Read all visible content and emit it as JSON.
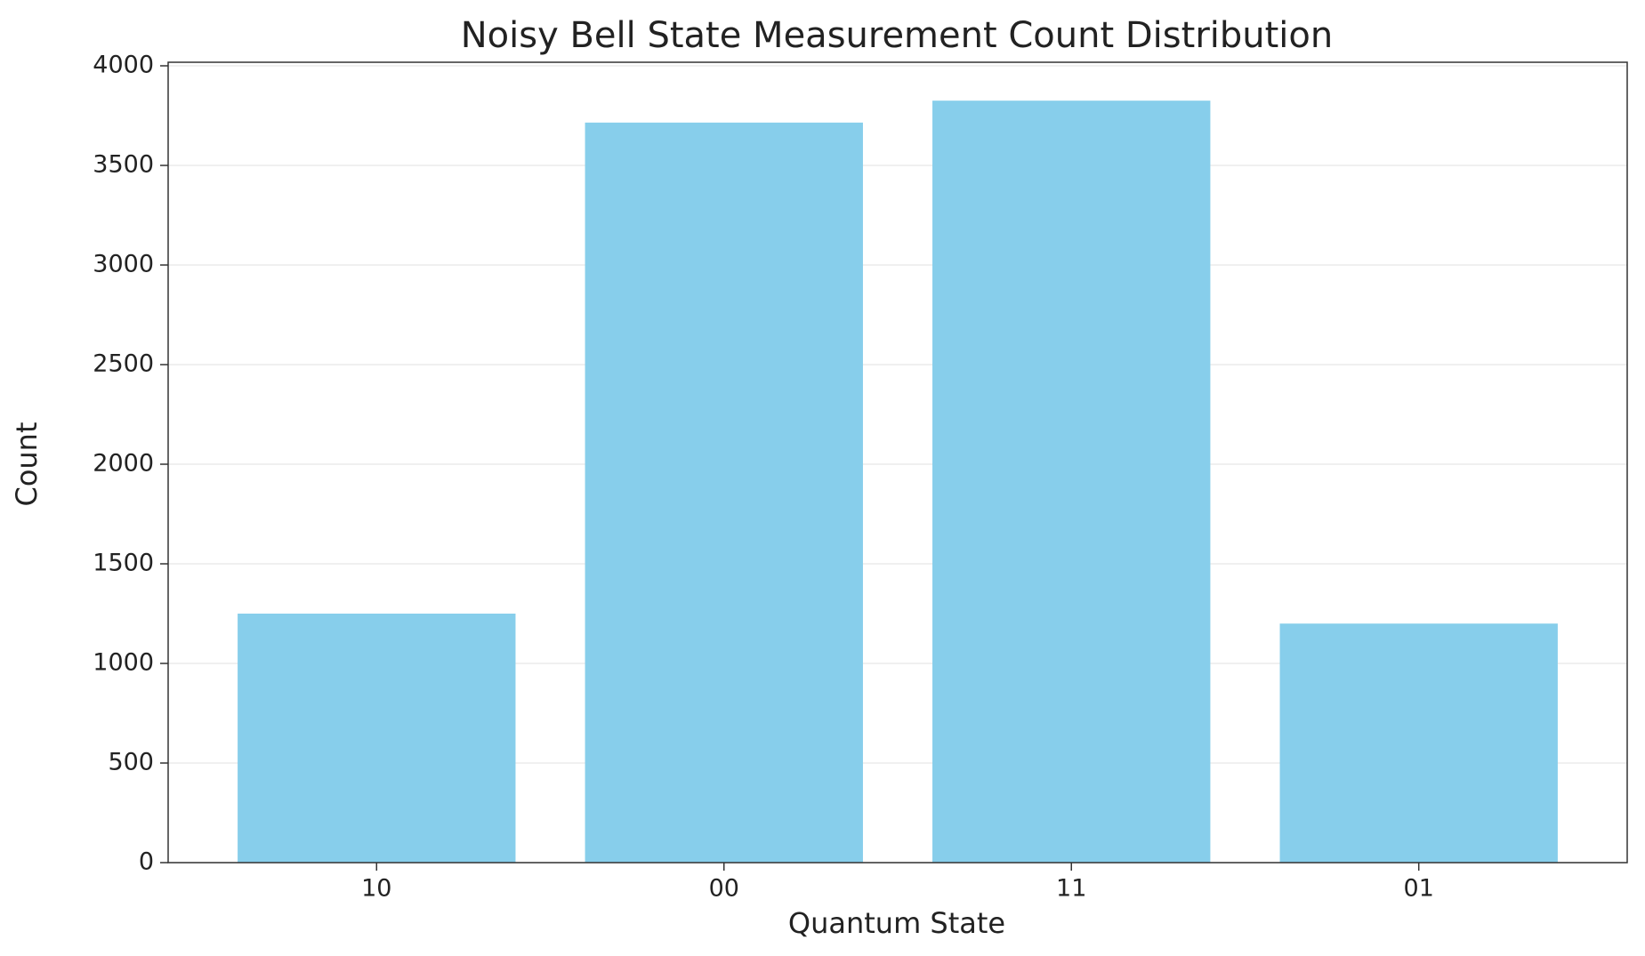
{
  "chart_data": {
    "type": "bar",
    "title": "Noisy Bell State Measurement Count Distribution",
    "x_label": "Quantum State",
    "y_label": "Count",
    "categories": [
      "10",
      "00",
      "11",
      "01"
    ],
    "values": [
      1250,
      3715,
      3825,
      1200
    ],
    "color": "#87ceeb",
    "ylim": [
      0,
      4000
    ],
    "yticks": [
      0,
      500,
      1000,
      1500,
      2000,
      2500,
      3000,
      3500,
      4000
    ],
    "grid": true
  }
}
